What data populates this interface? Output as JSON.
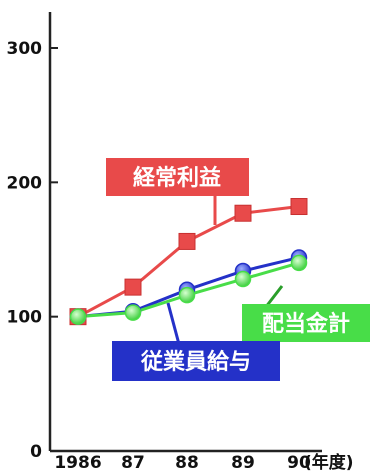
{
  "chart_data": {
    "type": "line",
    "x": [
      "1986",
      "87",
      "88",
      "89",
      "90"
    ],
    "x_unit": "(年度)",
    "ylim": [
      0,
      300
    ],
    "yticks": [
      0,
      100,
      200,
      300
    ],
    "grid": false,
    "series": [
      {
        "name": "経常利益",
        "color": "#e84a4a",
        "marker": "square",
        "values": [
          100,
          122,
          156,
          177,
          182
        ]
      },
      {
        "name": "従業員給与",
        "color": "#2431c8",
        "marker": "circle",
        "values": [
          100,
          104,
          120,
          134,
          144
        ]
      },
      {
        "name": "配当金計",
        "color": "#48dd48",
        "marker": "circle",
        "values": [
          100,
          103,
          116,
          128,
          140
        ]
      }
    ]
  }
}
